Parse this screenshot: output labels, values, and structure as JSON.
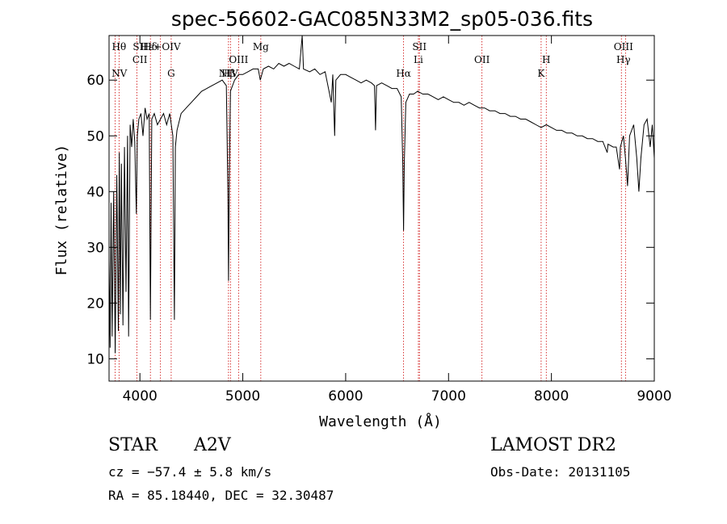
{
  "chart_data": {
    "type": "line",
    "title": "spec-56602-GAC085N33M2_sp05-036.fits",
    "xlabel": "Wavelength (Å)",
    "ylabel": "Flux (relative)",
    "xlim": [
      3700,
      9000
    ],
    "ylim": [
      6,
      68
    ],
    "xticks": [
      4000,
      5000,
      6000,
      7000,
      8000,
      9000
    ],
    "yticks": [
      10,
      20,
      30,
      40,
      50,
      60
    ],
    "grid": false,
    "series": [
      {
        "points": [
          [
            3700,
            28
          ],
          [
            3710,
            12
          ],
          [
            3720,
            38
          ],
          [
            3730,
            14
          ],
          [
            3745,
            40
          ],
          [
            3760,
            11
          ],
          [
            3775,
            43
          ],
          [
            3790,
            15
          ],
          [
            3800,
            47
          ],
          [
            3810,
            18
          ],
          [
            3820,
            45
          ],
          [
            3835,
            16
          ],
          [
            3850,
            48
          ],
          [
            3865,
            22
          ],
          [
            3880,
            50
          ],
          [
            3890,
            14
          ],
          [
            3905,
            52
          ],
          [
            3920,
            48
          ],
          [
            3935,
            53
          ],
          [
            3950,
            49
          ],
          [
            3965,
            36
          ],
          [
            3975,
            50
          ],
          [
            3990,
            53
          ],
          [
            4010,
            54
          ],
          [
            4030,
            50
          ],
          [
            4050,
            55
          ],
          [
            4070,
            53
          ],
          [
            4090,
            54
          ],
          [
            4102,
            17
          ],
          [
            4115,
            53
          ],
          [
            4140,
            54
          ],
          [
            4170,
            52
          ],
          [
            4200,
            53
          ],
          [
            4230,
            54
          ],
          [
            4260,
            52
          ],
          [
            4290,
            54
          ],
          [
            4320,
            50
          ],
          [
            4335,
            17
          ],
          [
            4345,
            48
          ],
          [
            4360,
            51
          ],
          [
            4400,
            54
          ],
          [
            4450,
            55
          ],
          [
            4500,
            56
          ],
          [
            4550,
            57
          ],
          [
            4600,
            58
          ],
          [
            4650,
            58.5
          ],
          [
            4700,
            59
          ],
          [
            4750,
            59.5
          ],
          [
            4800,
            60
          ],
          [
            4840,
            59
          ],
          [
            4855,
            40
          ],
          [
            4861,
            24
          ],
          [
            4868,
            42
          ],
          [
            4880,
            58
          ],
          [
            4920,
            60
          ],
          [
            4960,
            61
          ],
          [
            5000,
            61
          ],
          [
            5050,
            61.5
          ],
          [
            5100,
            62
          ],
          [
            5150,
            62
          ],
          [
            5170,
            60
          ],
          [
            5200,
            62
          ],
          [
            5250,
            62.5
          ],
          [
            5300,
            62
          ],
          [
            5350,
            63
          ],
          [
            5400,
            62.5
          ],
          [
            5450,
            63
          ],
          [
            5500,
            62.5
          ],
          [
            5550,
            62
          ],
          [
            5577,
            68
          ],
          [
            5590,
            62
          ],
          [
            5650,
            61.5
          ],
          [
            5700,
            62
          ],
          [
            5750,
            61
          ],
          [
            5800,
            61.5
          ],
          [
            5860,
            56
          ],
          [
            5875,
            61
          ],
          [
            5893,
            50
          ],
          [
            5905,
            60
          ],
          [
            5950,
            61
          ],
          [
            6000,
            61
          ],
          [
            6050,
            60.5
          ],
          [
            6100,
            60
          ],
          [
            6150,
            59.5
          ],
          [
            6200,
            60
          ],
          [
            6250,
            59.5
          ],
          [
            6280,
            59
          ],
          [
            6290,
            51
          ],
          [
            6300,
            59
          ],
          [
            6350,
            59.5
          ],
          [
            6400,
            59
          ],
          [
            6450,
            58.5
          ],
          [
            6500,
            58.5
          ],
          [
            6540,
            57
          ],
          [
            6555,
            45
          ],
          [
            6563,
            33
          ],
          [
            6570,
            45
          ],
          [
            6585,
            56
          ],
          [
            6620,
            57.5
          ],
          [
            6660,
            57.5
          ],
          [
            6700,
            58
          ],
          [
            6750,
            57.5
          ],
          [
            6800,
            57.5
          ],
          [
            6850,
            57
          ],
          [
            6900,
            56.5
          ],
          [
            6950,
            57
          ],
          [
            7000,
            56.5
          ],
          [
            7050,
            56
          ],
          [
            7100,
            56
          ],
          [
            7150,
            55.5
          ],
          [
            7200,
            56
          ],
          [
            7250,
            55.5
          ],
          [
            7300,
            55
          ],
          [
            7350,
            55
          ],
          [
            7400,
            54.5
          ],
          [
            7450,
            54.5
          ],
          [
            7500,
            54
          ],
          [
            7550,
            54
          ],
          [
            7600,
            53.5
          ],
          [
            7650,
            53.5
          ],
          [
            7700,
            53
          ],
          [
            7750,
            53
          ],
          [
            7800,
            52.5
          ],
          [
            7850,
            52
          ],
          [
            7900,
            51.5
          ],
          [
            7950,
            52
          ],
          [
            8000,
            51.5
          ],
          [
            8050,
            51
          ],
          [
            8100,
            51
          ],
          [
            8150,
            50.5
          ],
          [
            8200,
            50.5
          ],
          [
            8250,
            50
          ],
          [
            8300,
            50
          ],
          [
            8350,
            49.5
          ],
          [
            8400,
            49.5
          ],
          [
            8450,
            49
          ],
          [
            8500,
            49
          ],
          [
            8542,
            47
          ],
          [
            8550,
            48.5
          ],
          [
            8600,
            48
          ],
          [
            8630,
            48
          ],
          [
            8662,
            44
          ],
          [
            8670,
            48
          ],
          [
            8700,
            50
          ],
          [
            8720,
            46
          ],
          [
            8740,
            41
          ],
          [
            8760,
            50
          ],
          [
            8800,
            52
          ],
          [
            8830,
            46
          ],
          [
            8850,
            40
          ],
          [
            8870,
            46
          ],
          [
            8900,
            52
          ],
          [
            8930,
            53
          ],
          [
            8960,
            48
          ],
          [
            8980,
            52
          ],
          [
            9000,
            46
          ]
        ]
      }
    ],
    "lines_top": [
      {
        "label": "Hθ",
        "x": 3797
      },
      {
        "label": "SII",
        "x": 4000
      },
      {
        "label": "Hδ",
        "x": 4102
      },
      {
        "label": "Hε+OIV",
        "x": 4200
      },
      {
        "label": "Mg",
        "x": 5175
      },
      {
        "label": "SII",
        "x": 6717
      },
      {
        "label": "OIII",
        "x": 8700
      }
    ],
    "lines_mid": [
      {
        "label": "CII",
        "x": 4000
      },
      {
        "label": "OIII",
        "x": 4959
      },
      {
        "label": "Li",
        "x": 6707
      },
      {
        "label": "OII",
        "x": 7325
      },
      {
        "label": "H",
        "x": 7950
      },
      {
        "label": "Hγ",
        "x": 8700
      }
    ],
    "lines_low": [
      {
        "label": "NV",
        "x": 3800
      },
      {
        "label": "G",
        "x": 4304
      },
      {
        "label": "NIV",
        "x": 4861
      },
      {
        "label": "Hβ",
        "x": 4861
      },
      {
        "label": "Hα",
        "x": 6563
      },
      {
        "label": "K",
        "x": 7900
      }
    ],
    "vlines": [
      3760,
      3797,
      3970,
      4102,
      4200,
      4304,
      4861,
      4880,
      4959,
      5175,
      6563,
      6707,
      6717,
      7325,
      7900,
      7950,
      8680,
      8720
    ]
  },
  "footer": {
    "object_class": "STAR",
    "subclass": "A2V",
    "survey": "LAMOST DR2",
    "cz": "cz = −57.4 ± 5.8 km/s",
    "obs_date": "Obs-Date: 20131105",
    "coords": "RA =  85.18440, DEC =  32.30487"
  },
  "colors": {
    "spectrum": "#000000",
    "reference_lines": "#cc0000",
    "axes": "#000000"
  }
}
